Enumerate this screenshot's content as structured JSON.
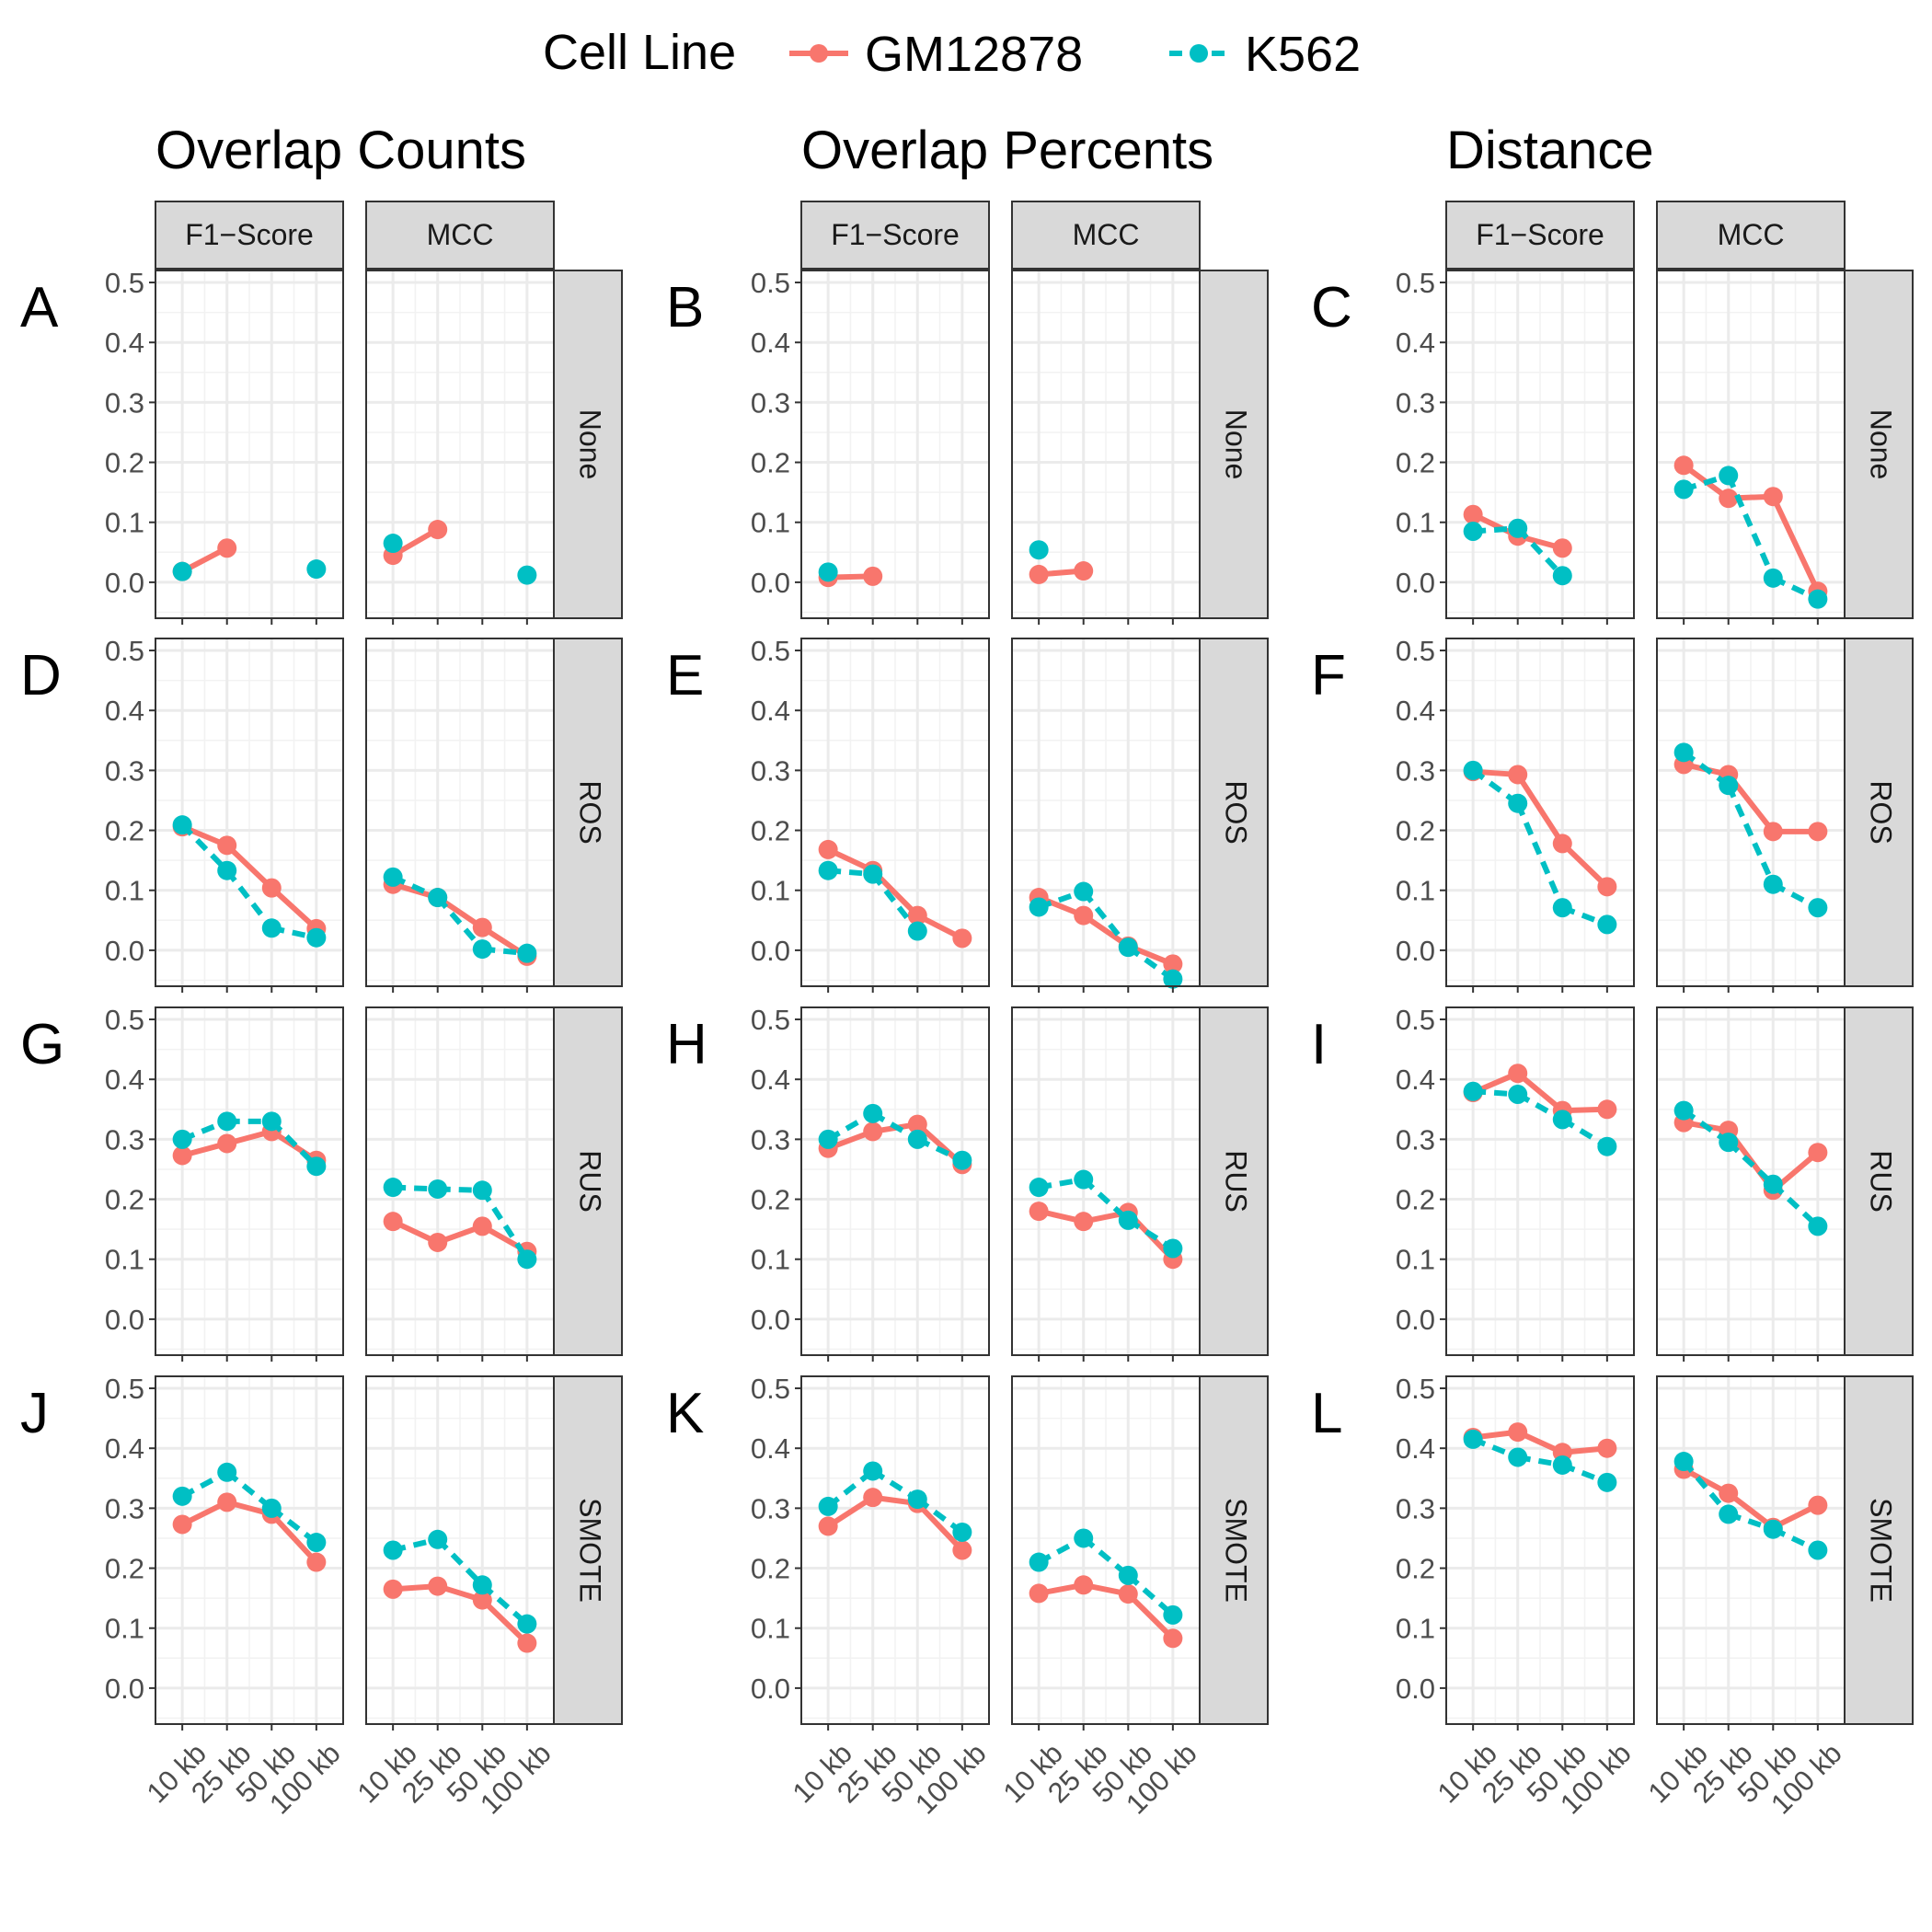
{
  "legend": {
    "title": "Cell Line",
    "items": [
      {
        "name": "GM12878",
        "color": "#F8766D",
        "dash": "solid"
      },
      {
        "name": "K562",
        "color": "#00BFC4",
        "dash": "dashed"
      }
    ]
  },
  "facets": {
    "columns": [
      "F1−Score",
      "MCC"
    ],
    "rows": [
      "None",
      "ROS",
      "RUS",
      "SMOTE"
    ]
  },
  "groups": [
    "Overlap Counts",
    "Overlap Percents",
    "Distance"
  ],
  "panel_letters": [
    "A",
    "B",
    "C",
    "D",
    "E",
    "F",
    "G",
    "H",
    "I",
    "J",
    "K",
    "L"
  ],
  "axis": {
    "x_ticks": [
      "10 kb",
      "25 kb",
      "50 kb",
      "100 kb"
    ],
    "y_ticks": [
      "0.0",
      "0.1",
      "0.2",
      "0.3",
      "0.4",
      "0.5"
    ]
  },
  "chart_data": {
    "type": "line",
    "categories": [
      "10 kb",
      "25 kb",
      "50 kb",
      "100 kb"
    ],
    "ylim": [
      -0.06,
      0.52
    ],
    "grid": true,
    "legend_position": "top",
    "series_names": [
      "GM12878",
      "K562"
    ],
    "panels": [
      {
        "group": "Overlap Counts",
        "row": "None",
        "metric": "F1−Score",
        "GM12878": [
          0.018,
          0.057,
          null,
          null
        ],
        "K562": [
          0.018,
          null,
          null,
          0.022
        ]
      },
      {
        "group": "Overlap Counts",
        "row": "None",
        "metric": "MCC",
        "GM12878": [
          0.045,
          0.088,
          null,
          null
        ],
        "K562": [
          0.065,
          null,
          null,
          0.012
        ]
      },
      {
        "group": "Overlap Percents",
        "row": "None",
        "metric": "F1−Score",
        "GM12878": [
          0.008,
          0.01,
          null,
          null
        ],
        "K562": [
          0.017,
          null,
          null,
          null
        ]
      },
      {
        "group": "Overlap Percents",
        "row": "None",
        "metric": "MCC",
        "GM12878": [
          0.013,
          0.019,
          null,
          null
        ],
        "K562": [
          0.054,
          null,
          null,
          null
        ]
      },
      {
        "group": "Distance",
        "row": "None",
        "metric": "F1−Score",
        "GM12878": [
          0.113,
          0.077,
          0.057,
          null
        ],
        "K562": [
          0.085,
          0.09,
          0.011,
          null
        ]
      },
      {
        "group": "Distance",
        "row": "None",
        "metric": "MCC",
        "GM12878": [
          0.195,
          0.14,
          0.143,
          -0.015
        ],
        "K562": [
          0.155,
          0.178,
          0.007,
          -0.028
        ]
      },
      {
        "group": "Overlap Counts",
        "row": "ROS",
        "metric": "F1−Score",
        "GM12878": [
          0.206,
          0.175,
          0.104,
          0.036
        ],
        "K562": [
          0.209,
          0.133,
          0.037,
          0.021
        ]
      },
      {
        "group": "Overlap Counts",
        "row": "ROS",
        "metric": "MCC",
        "GM12878": [
          0.11,
          0.088,
          0.038,
          -0.01
        ],
        "K562": [
          0.122,
          0.088,
          0.002,
          -0.005
        ]
      },
      {
        "group": "Overlap Percents",
        "row": "ROS",
        "metric": "F1−Score",
        "GM12878": [
          0.168,
          0.133,
          0.058,
          0.02
        ],
        "K562": [
          0.133,
          0.127,
          0.032,
          null
        ]
      },
      {
        "group": "Overlap Percents",
        "row": "ROS",
        "metric": "MCC",
        "GM12878": [
          0.088,
          0.058,
          0.007,
          -0.023
        ],
        "K562": [
          0.072,
          0.098,
          0.005,
          -0.048
        ]
      },
      {
        "group": "Distance",
        "row": "ROS",
        "metric": "F1−Score",
        "GM12878": [
          0.298,
          0.293,
          0.178,
          0.106
        ],
        "K562": [
          0.3,
          0.245,
          0.071,
          0.043
        ]
      },
      {
        "group": "Distance",
        "row": "ROS",
        "metric": "MCC",
        "GM12878": [
          0.31,
          0.293,
          0.198,
          0.198
        ],
        "K562": [
          0.33,
          0.275,
          0.11,
          0.071
        ]
      },
      {
        "group": "Overlap Counts",
        "row": "RUS",
        "metric": "F1−Score",
        "GM12878": [
          0.273,
          0.293,
          0.313,
          0.265
        ],
        "K562": [
          0.3,
          0.33,
          0.33,
          0.255
        ]
      },
      {
        "group": "Overlap Counts",
        "row": "RUS",
        "metric": "MCC",
        "GM12878": [
          0.163,
          0.128,
          0.155,
          0.113
        ],
        "K562": [
          0.22,
          0.217,
          0.215,
          0.1
        ]
      },
      {
        "group": "Overlap Percents",
        "row": "RUS",
        "metric": "F1−Score",
        "GM12878": [
          0.285,
          0.313,
          0.325,
          0.258
        ],
        "K562": [
          0.3,
          0.343,
          0.3,
          0.265
        ]
      },
      {
        "group": "Overlap Percents",
        "row": "RUS",
        "metric": "MCC",
        "GM12878": [
          0.18,
          0.163,
          0.178,
          0.1
        ],
        "K562": [
          0.22,
          0.233,
          0.165,
          0.118
        ]
      },
      {
        "group": "Distance",
        "row": "RUS",
        "metric": "F1−Score",
        "GM12878": [
          0.378,
          0.41,
          0.348,
          0.35
        ],
        "K562": [
          0.38,
          0.375,
          0.333,
          0.288
        ]
      },
      {
        "group": "Distance",
        "row": "RUS",
        "metric": "MCC",
        "GM12878": [
          0.328,
          0.315,
          0.215,
          0.278
        ],
        "K562": [
          0.348,
          0.295,
          0.225,
          0.155
        ]
      },
      {
        "group": "Overlap Counts",
        "row": "SMOTE",
        "metric": "F1−Score",
        "GM12878": [
          0.273,
          0.31,
          0.29,
          0.21
        ],
        "K562": [
          0.32,
          0.36,
          0.3,
          0.243
        ]
      },
      {
        "group": "Overlap Counts",
        "row": "SMOTE",
        "metric": "MCC",
        "GM12878": [
          0.165,
          0.17,
          0.147,
          0.075
        ],
        "K562": [
          0.23,
          0.248,
          0.172,
          0.107
        ]
      },
      {
        "group": "Overlap Percents",
        "row": "SMOTE",
        "metric": "F1−Score",
        "GM12878": [
          0.27,
          0.318,
          0.308,
          0.23
        ],
        "K562": [
          0.303,
          0.362,
          0.315,
          0.26
        ]
      },
      {
        "group": "Overlap Percents",
        "row": "SMOTE",
        "metric": "MCC",
        "GM12878": [
          0.158,
          0.172,
          0.157,
          0.083
        ],
        "K562": [
          0.21,
          0.25,
          0.188,
          0.122
        ]
      },
      {
        "group": "Distance",
        "row": "SMOTE",
        "metric": "F1−Score",
        "GM12878": [
          0.418,
          0.427,
          0.393,
          0.4
        ],
        "K562": [
          0.415,
          0.385,
          0.372,
          0.343
        ]
      },
      {
        "group": "Distance",
        "row": "SMOTE",
        "metric": "MCC",
        "GM12878": [
          0.365,
          0.325,
          0.268,
          0.305
        ],
        "K562": [
          0.378,
          0.29,
          0.265,
          0.23
        ]
      }
    ]
  }
}
